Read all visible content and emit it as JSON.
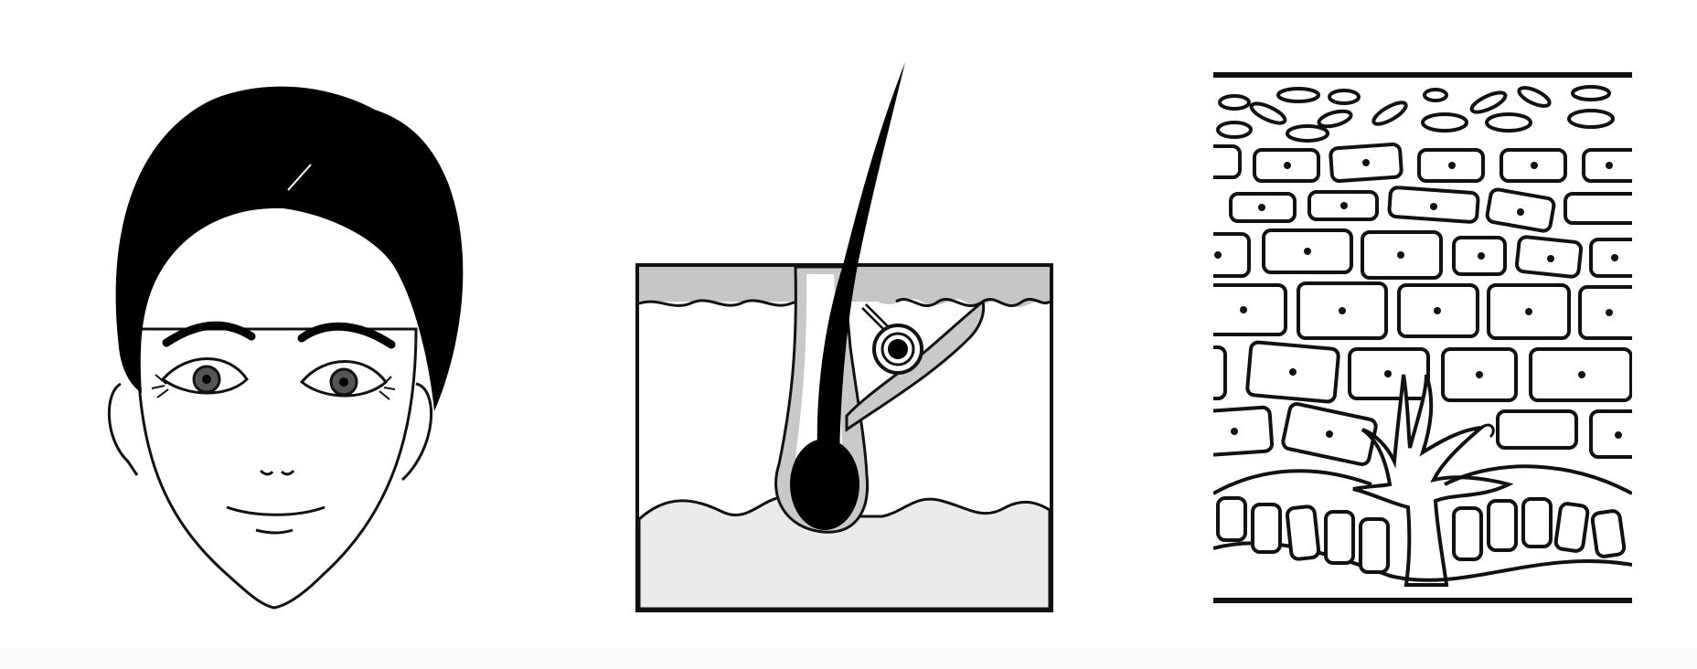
{
  "figure": {
    "panels": [
      {
        "id": "face",
        "depicts": "face-illustration"
      },
      {
        "id": "follicle",
        "depicts": "hair-follicle-cross-section"
      },
      {
        "id": "epidermis",
        "depicts": "epidermis-cell-layers"
      }
    ]
  },
  "colors": {
    "ink": "#111111",
    "outline": "#1a1a1a",
    "hair": "#000000",
    "iris": "#555555",
    "epidermis_fill": "#c6c6c6",
    "dermis_fill": "#ebebec",
    "follicle_sheath": "#c9c9c9",
    "background": "#ffffff"
  }
}
